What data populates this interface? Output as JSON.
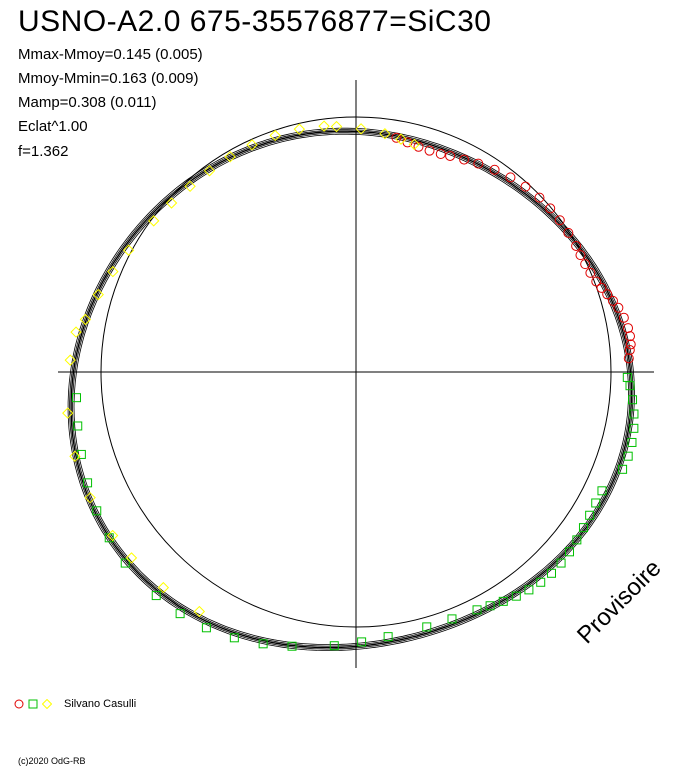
{
  "title": "USNO-A2.0 675-35576877=SiC30",
  "stats": [
    "Mmax-Mmoy=0.145 (0.005)",
    "Mmoy-Mmin=0.163 (0.009)",
    "Mamp=0.308 (0.011)",
    "Eclat^1.00",
    "f=1.362"
  ],
  "watermark": "Provisoire",
  "author": "Silvano Casulli",
  "copyright": "(c)2020 OdG-RB",
  "colors": {
    "red_series": "#e00000",
    "green_series": "#00c000",
    "yellow_series": "#ffff00",
    "curve": "#000000",
    "axes": "#000000"
  },
  "chart_data": {
    "type": "scatter",
    "projection": "polar phase plot",
    "reference_radius_mag": 1.0,
    "mean_radius_mag": 1.1,
    "series": [
      {
        "marker": "circle",
        "color": "red",
        "phase": [
          0.05,
          0.08,
          0.1,
          0.13,
          0.16,
          0.2,
          0.24,
          0.27,
          0.3,
          0.33,
          0.36,
          0.4,
          0.44,
          0.48,
          0.52,
          0.58,
          0.64,
          0.7,
          0.76,
          0.83,
          0.9,
          0.97,
          1.04,
          1.1,
          1.16,
          1.2,
          1.25,
          1.3,
          1.35,
          1.4
        ]
      },
      {
        "marker": "square",
        "color": "green",
        "phase": [
          -0.45,
          -0.5,
          -0.55,
          -0.6,
          -0.65,
          -0.7,
          -0.75,
          -0.8,
          -0.85,
          -0.9,
          -0.95,
          -1.0,
          -1.05,
          -1.1,
          -1.2,
          -1.3,
          -1.45,
          -1.55,
          -1.65,
          -1.8,
          -1.9,
          -2.0,
          -2.1,
          -2.2,
          -2.3,
          -2.45,
          -2.55,
          -2.65,
          -2.75,
          -2.85,
          -2.95,
          -3.05,
          -0.02,
          -0.05,
          -0.1,
          -0.15,
          -0.2,
          -0.25,
          -0.3,
          -0.35
        ]
      },
      {
        "marker": "diamond",
        "color": "yellow",
        "phase": [
          2.95,
          2.85,
          2.75,
          2.65,
          2.5,
          2.4,
          2.3,
          2.2,
          2.1,
          2.0,
          1.9,
          1.8,
          1.7,
          1.65,
          1.55,
          1.45,
          1.38,
          1.32,
          -2.15,
          -2.3,
          -2.45,
          -2.55,
          -2.7,
          -2.85,
          -3.0,
          3.1,
          3.0
        ]
      }
    ]
  }
}
